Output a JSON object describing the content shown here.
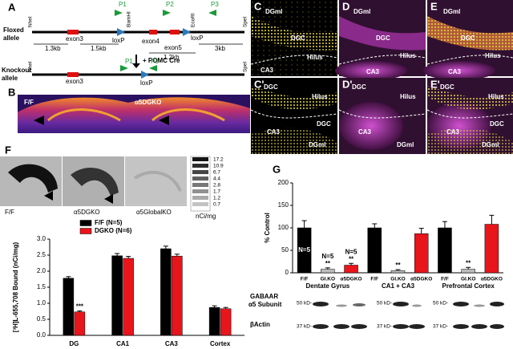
{
  "figure": {
    "panel_labels": [
      "A",
      "B",
      "C",
      "D",
      "E",
      "C'",
      "D'",
      "E'",
      "F",
      "G"
    ],
    "panel_a": {
      "floxed": [
        "Floxed",
        "allele"
      ],
      "knockout": [
        "Knockout",
        "allele"
      ],
      "exons": [
        "exon3",
        "exon4",
        "exon5"
      ],
      "loxp": "loxP",
      "primers": [
        "P1",
        "P2",
        "P3"
      ],
      "sites": [
        "NheI",
        "BamHI",
        "EcoRI",
        "SpeI"
      ],
      "lengths": [
        "1.3kb",
        "1.5kb",
        "1.2kb",
        "3kb"
      ],
      "cre": "+ POMC Cre"
    },
    "panel_b": {
      "labels": [
        "F/F",
        "α5DGKO"
      ]
    },
    "micrographs": {
      "C": [
        "DGml",
        "DGC",
        "Hilus",
        "CA3"
      ],
      "D": [
        "DGml",
        "DGC",
        "Hilus",
        "CA3"
      ],
      "E": [
        "DGml",
        "DGC",
        "Hilus",
        "CA3"
      ],
      "C2": [
        "DGC",
        "Hilus",
        "DGC",
        "CA3",
        "DGml"
      ],
      "D2": [
        "DGC",
        "Hilus",
        "CA3",
        "DGml"
      ],
      "E2": [
        "DGC",
        "Hilus",
        "DGC",
        "CA3",
        "DGml"
      ]
    },
    "panel_f": {
      "labels": [
        "F/F",
        "α5DGKO",
        "α5GlobalKO"
      ],
      "scale": [
        17.2,
        10.9,
        6.7,
        4.4,
        2.8,
        1.7,
        1.2,
        0.7
      ],
      "unit": "nCi/mg"
    },
    "panel_g_blots": {
      "target": [
        "GABAAR",
        "α5 Subunit"
      ],
      "loading": "βActin",
      "markers": [
        "50 kD-",
        "37 kD-"
      ]
    }
  },
  "chart_data": [
    {
      "type": "bar",
      "y_label": "[³H]L-655,708 Bound (nCi/mg)",
      "categories": [
        "DG",
        "CA1",
        "CA3",
        "Cortex"
      ],
      "series": [
        {
          "name": "F/F (N=5)",
          "color": "#000000",
          "values": [
            1.78,
            2.48,
            2.7,
            0.87
          ],
          "errors": [
            0.05,
            0.07,
            0.08,
            0.05
          ],
          "annotations": [
            null,
            null,
            null,
            null
          ]
        },
        {
          "name": "DGKO (N=6)",
          "color": "#e8151b",
          "values": [
            0.73,
            2.4,
            2.47,
            0.83
          ],
          "errors": [
            0.03,
            0.06,
            0.06,
            0.04
          ],
          "annotations": [
            "***",
            null,
            null,
            null
          ]
        }
      ],
      "ylim": [
        0,
        3
      ],
      "yticks": [
        {
          "value": 0,
          "label": "0.0"
        },
        {
          "value": 0.5,
          "label": "0.5"
        },
        {
          "value": 1,
          "label": "1.0"
        },
        {
          "value": 1.5,
          "label": "1.5"
        },
        {
          "value": 2,
          "label": "2.0"
        },
        {
          "value": 2.5,
          "label": "2.5"
        },
        {
          "value": 3,
          "label": "3.0"
        }
      ]
    },
    {
      "type": "bar",
      "y_label": "% Control",
      "categories": [
        "F/F",
        "Gl.KO",
        "α5DGKO",
        "F/F",
        "Gl.KO",
        "α5DGKO",
        "F/F",
        "Gl.KO",
        "α5DGKO"
      ],
      "groups": [
        "Dentate Gyrus",
        "CA1 + CA3",
        "Prefrontal Cortex"
      ],
      "values": [
        100,
        8,
        17,
        100,
        5,
        87,
        100,
        8,
        108
      ],
      "errors": [
        16,
        3,
        4,
        9,
        2,
        12,
        14,
        4,
        20
      ],
      "colors": [
        "#000000",
        "#bdbdbd",
        "#e8151b",
        "#000000",
        "#bdbdbd",
        "#e8151b",
        "#000000",
        "#bdbdbd",
        "#e8151b"
      ],
      "n_labels": [
        "N=5",
        "N=5",
        "N=5",
        null,
        null,
        null,
        null,
        null,
        null
      ],
      "annotations": [
        null,
        "**",
        "**",
        null,
        "**",
        null,
        null,
        "**",
        null
      ],
      "ylim": [
        0,
        200
      ],
      "yticks": [
        0,
        50,
        100,
        150,
        200
      ]
    }
  ]
}
